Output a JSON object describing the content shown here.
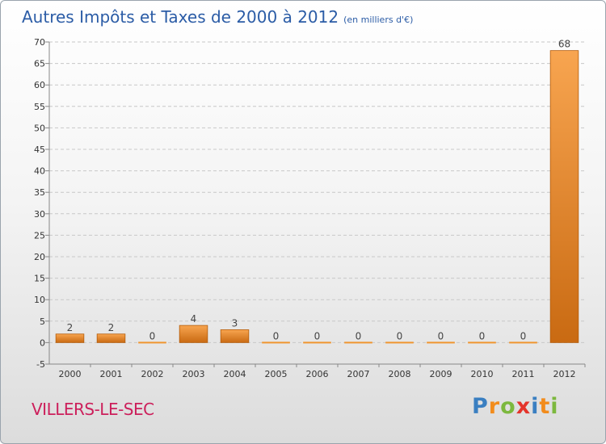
{
  "chart_data": {
    "type": "bar",
    "title": "Autres Impôts et Taxes de 2000 à 2012",
    "subtitle": "(en milliers d'€)",
    "categories": [
      "2000",
      "2001",
      "2002",
      "2003",
      "2004",
      "2005",
      "2006",
      "2007",
      "2008",
      "2009",
      "2010",
      "2011",
      "2012"
    ],
    "values": [
      2,
      2,
      0,
      4,
      3,
      0,
      0,
      0,
      0,
      0,
      0,
      0,
      68
    ],
    "ylim": [
      -5,
      70
    ],
    "yticks": [
      -5,
      0,
      5,
      10,
      15,
      20,
      25,
      30,
      35,
      40,
      45,
      50,
      55,
      60,
      65,
      70
    ],
    "grid": true,
    "bar_color": "#f0952e",
    "bar_color_dark": "#c96a12"
  },
  "location": "VILLERS-LE-SEC",
  "logo": {
    "letters": [
      "P",
      "r",
      "o",
      "x",
      "i",
      "t",
      "i"
    ],
    "colors": [
      "#3a7fc1",
      "#f28c1c",
      "#7cb83e",
      "#e4342b",
      "#3a7fc1",
      "#f28c1c",
      "#7cb83e"
    ]
  }
}
